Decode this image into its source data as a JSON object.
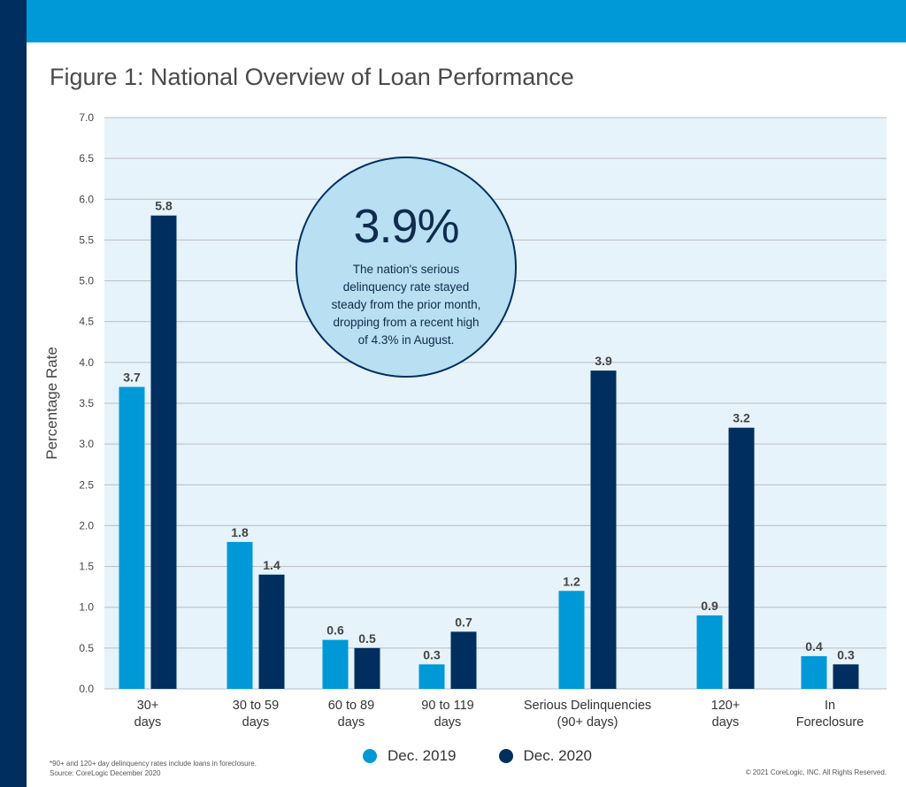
{
  "title": "Figure 1: National Overview of Loan Performance",
  "colors": {
    "dec2019": "#0099d8",
    "dec2020": "#002f5f",
    "plot_bg": "#e6f3fb",
    "header": "#0099d8",
    "sidebar": "#002f5f"
  },
  "callout": {
    "value": "3.9%",
    "text": "The nation's serious delinquency rate stayed steady from the prior month, dropping from a recent high of 4.3% in August."
  },
  "chart_data": {
    "type": "bar",
    "ylabel": "Percentage Rate",
    "ylim": [
      0,
      7
    ],
    "yticks": [
      "0.0",
      "0.5",
      "1.0",
      "1.5",
      "2.0",
      "2.5",
      "3.0",
      "3.5",
      "4.0",
      "4.5",
      "5.0",
      "5.5",
      "6.0",
      "6.5",
      "7.0"
    ],
    "categories": [
      [
        "30+",
        "days"
      ],
      [
        "30 to 59",
        "days"
      ],
      [
        "60 to 89",
        "days"
      ],
      [
        "90 to 119",
        "days"
      ],
      [
        "Serious Delinquencies",
        "(90+ days)"
      ],
      [
        "120+",
        "days"
      ],
      [
        "In",
        "Foreclosure"
      ]
    ],
    "series": [
      {
        "name": "Dec. 2019",
        "values": [
          3.7,
          1.8,
          0.6,
          0.3,
          1.2,
          0.9,
          0.4
        ]
      },
      {
        "name": "Dec. 2020",
        "values": [
          5.8,
          1.4,
          0.5,
          0.7,
          3.9,
          3.2,
          0.3
        ]
      }
    ],
    "grid": true,
    "legend": "bottom"
  },
  "legend": {
    "item1": "Dec. 2019",
    "item2": "Dec. 2020"
  },
  "footnotes": {
    "note": "*90+ and 120+ day delinquency rates include loans in foreclosure.",
    "source": "Source: CoreLogic December 2020",
    "copyright": "© 2021 CoreLogic, INC. All Rights Reserved."
  }
}
